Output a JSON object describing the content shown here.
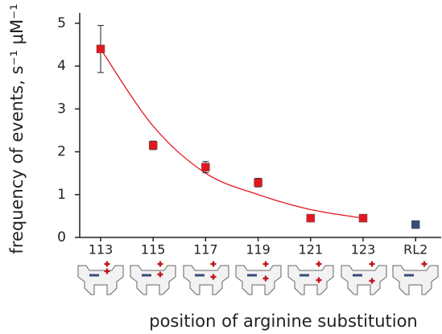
{
  "chart_data": {
    "type": "scatter",
    "x_label": "position of arginine substitution",
    "y_label": "frequency of events, s⁻¹ μM⁻¹",
    "categories": [
      "113",
      "115",
      "117",
      "119",
      "121",
      "123",
      "RL2"
    ],
    "series": [
      {
        "color": "#e3171f",
        "values": [
          4.4,
          2.15,
          1.64,
          1.28,
          0.45,
          0.45,
          null
        ],
        "errors": [
          0.55,
          0.1,
          0.13,
          0.1,
          0.05,
          0.05,
          null
        ]
      },
      {
        "color": "#3a4a78",
        "values": [
          null,
          null,
          null,
          null,
          null,
          null,
          0.3
        ],
        "errors": [
          null,
          null,
          null,
          null,
          null,
          null,
          0.03
        ]
      }
    ],
    "fit": {
      "color": "#e3171f",
      "values": [
        4.4,
        2.6,
        1.5,
        1.0,
        0.65,
        0.45,
        null
      ]
    },
    "ylim": [
      0,
      5.1
    ],
    "yticks": [
      0,
      1,
      2,
      3,
      4,
      5
    ]
  }
}
